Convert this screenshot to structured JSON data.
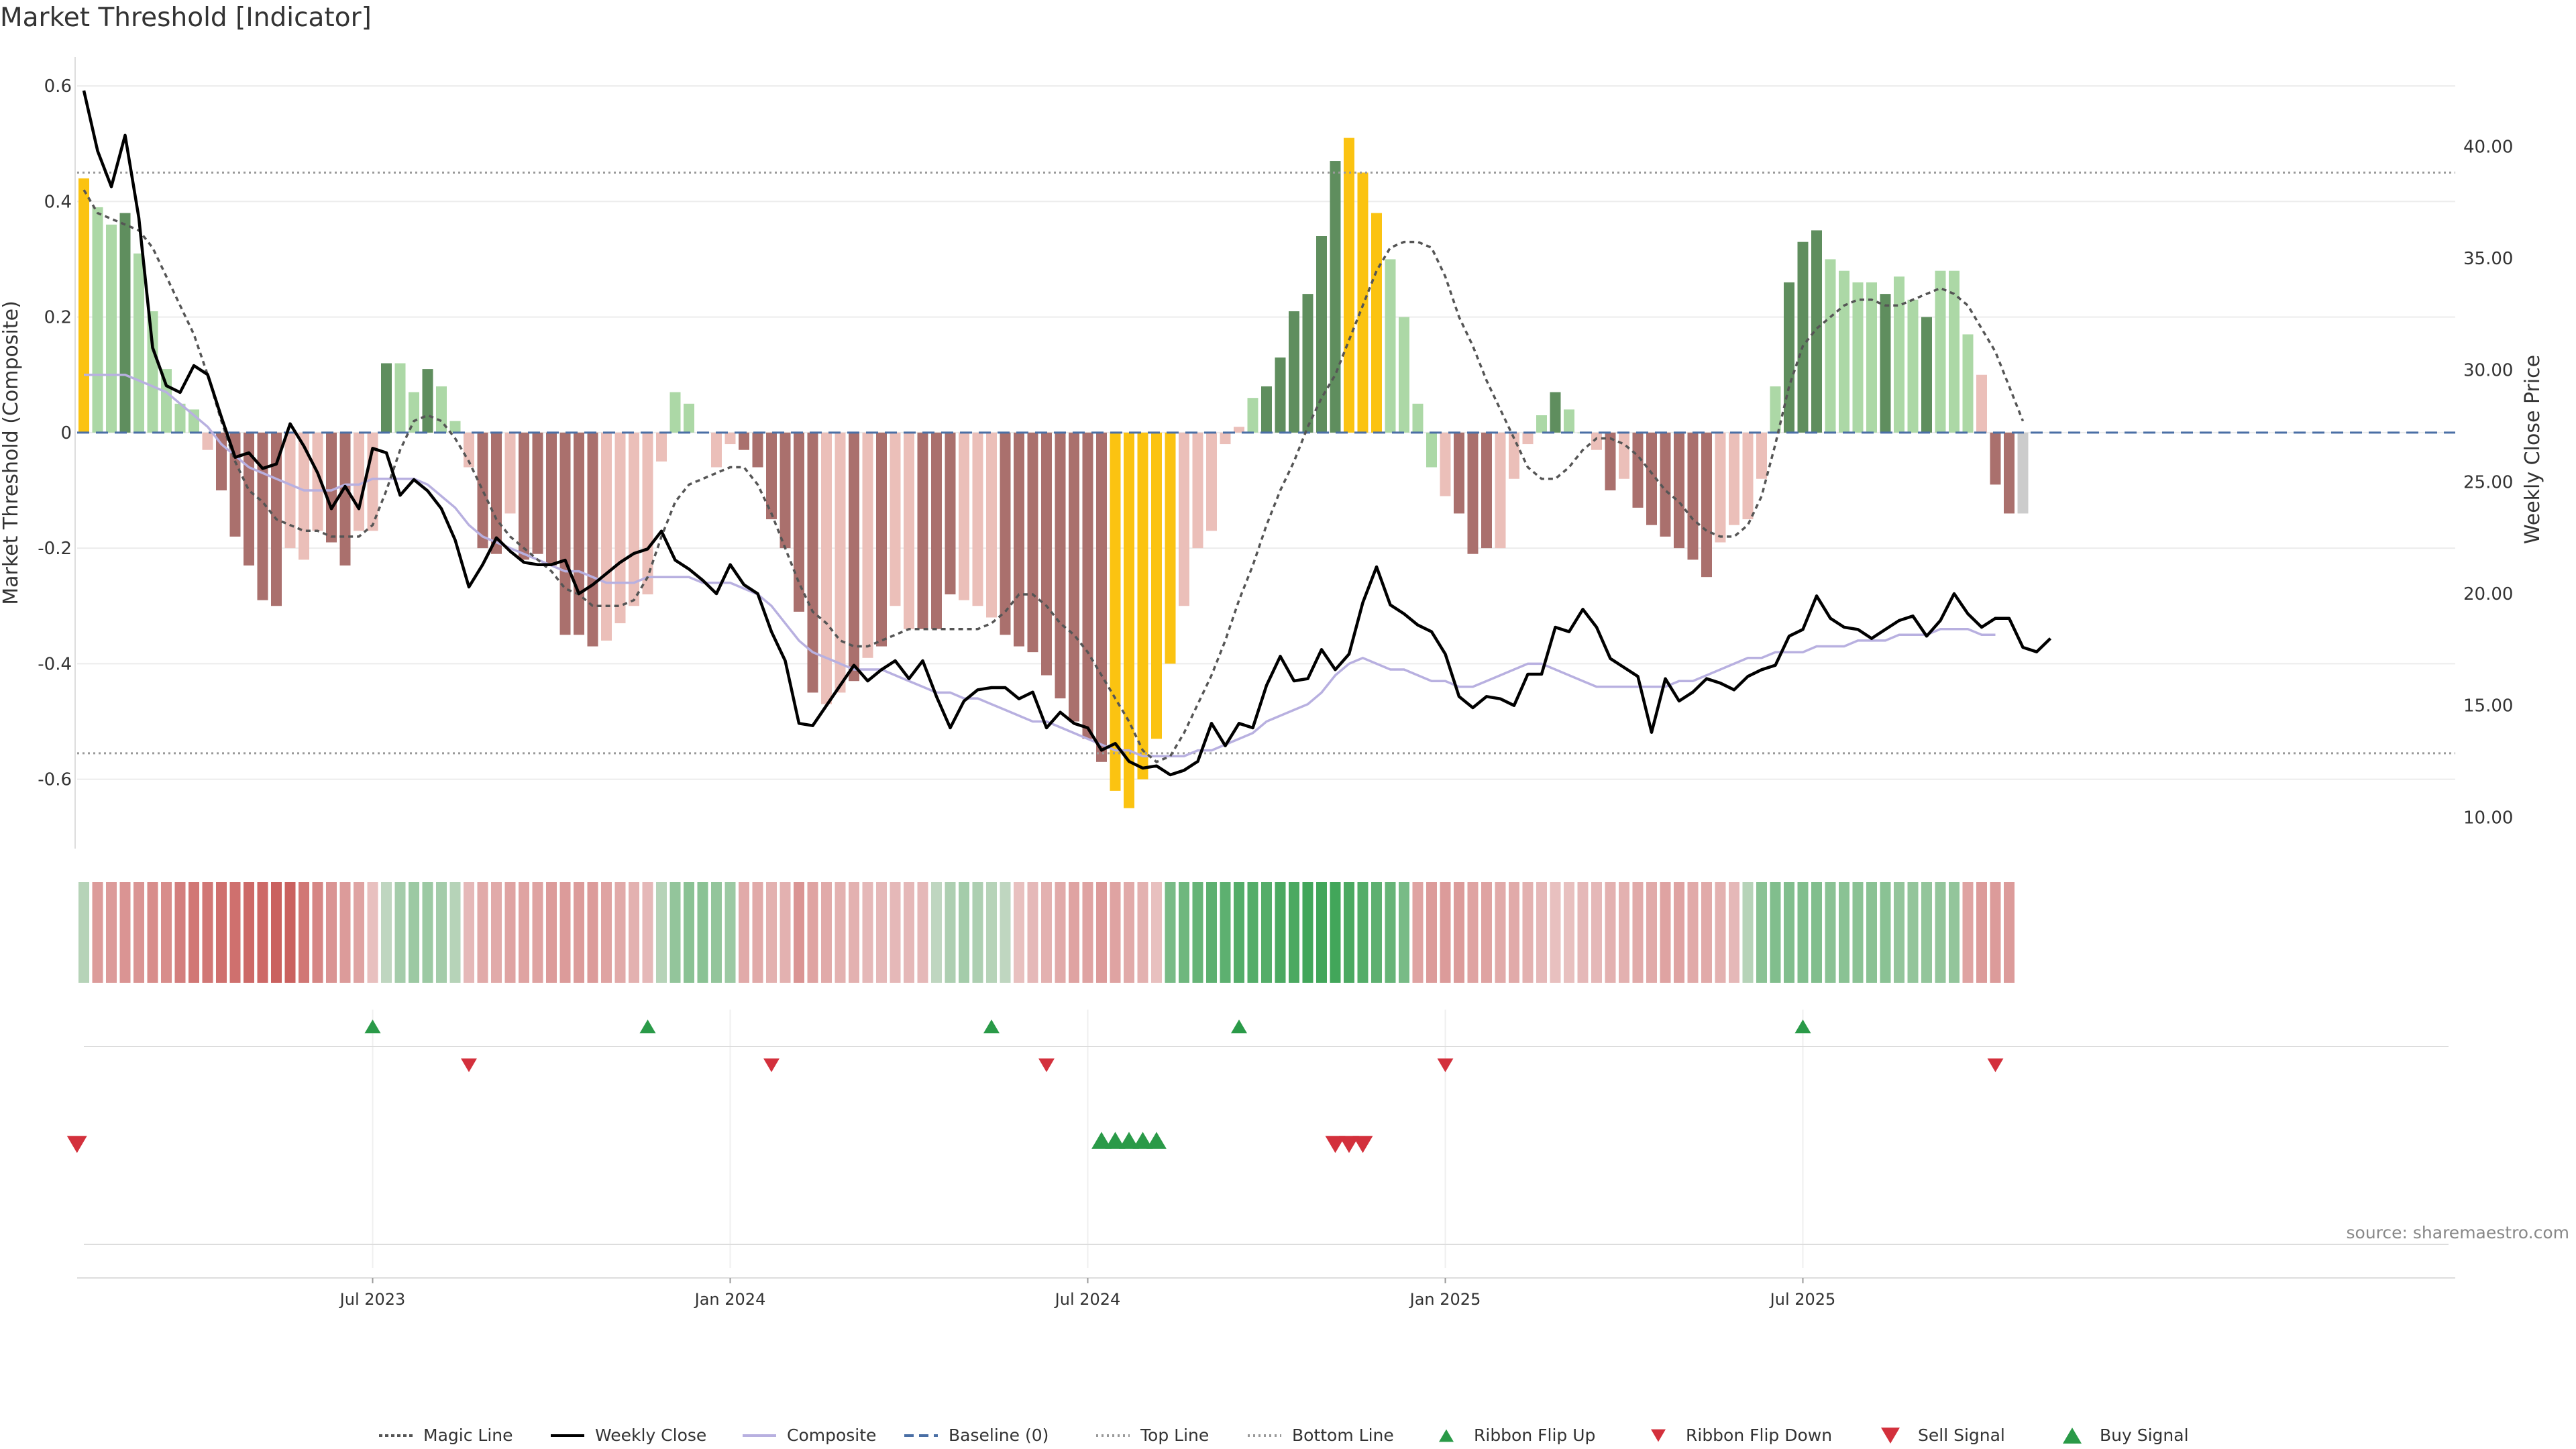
{
  "chart_data": {
    "type": "bar",
    "title": "Market Threshold [Indicator]",
    "ylabel": "Market Threshold (Composite)",
    "y2label": "Weekly Close Price",
    "source": "source: sharemaestro.com",
    "ylim": [
      -0.72,
      0.65
    ],
    "y2lim": [
      8.6,
      44.0
    ],
    "yticks": [
      {
        "v": 0.6,
        "label": "0.6"
      },
      {
        "v": 0.4,
        "label": "0.4"
      },
      {
        "v": 0.2,
        "label": "0.2"
      },
      {
        "v": 0.0,
        "label": "0"
      },
      {
        "v": -0.2,
        "label": "-0.2"
      },
      {
        "v": -0.4,
        "label": "-0.4"
      },
      {
        "v": -0.6,
        "label": "-0.6"
      }
    ],
    "y2ticks": [
      {
        "v": 40,
        "label": "40.00"
      },
      {
        "v": 35,
        "label": "35.00"
      },
      {
        "v": 30,
        "label": "30.00"
      },
      {
        "v": 25,
        "label": "25.00"
      },
      {
        "v": 20,
        "label": "20.00"
      },
      {
        "v": 15,
        "label": "15.00"
      },
      {
        "v": 10,
        "label": "10.00"
      }
    ],
    "xticks": [
      {
        "week": 21,
        "label": "Jul 2023"
      },
      {
        "week": 47,
        "label": "Jan 2024"
      },
      {
        "week": 73,
        "label": "Jul 2024"
      },
      {
        "week": 99,
        "label": "Jan 2025"
      },
      {
        "week": 125,
        "label": "Jul 2025"
      }
    ],
    "top_line": 0.45,
    "bottom_line": -0.555,
    "baseline": 0,
    "composite": [
      0.44,
      0.39,
      0.36,
      0.38,
      0.31,
      0.21,
      0.11,
      0.05,
      0.04,
      -0.03,
      -0.1,
      -0.18,
      -0.23,
      -0.29,
      -0.3,
      -0.2,
      -0.22,
      -0.17,
      -0.19,
      -0.23,
      -0.17,
      -0.17,
      0.12,
      0.12,
      0.07,
      0.11,
      0.08,
      0.02,
      -0.06,
      -0.2,
      -0.21,
      -0.14,
      -0.22,
      -0.21,
      -0.23,
      -0.35,
      -0.35,
      -0.37,
      -0.36,
      -0.33,
      -0.3,
      -0.28,
      -0.05,
      0.07,
      0.05,
      0,
      -0.06,
      -0.02,
      -0.03,
      -0.06,
      -0.15,
      -0.2,
      -0.31,
      -0.45,
      -0.47,
      -0.45,
      -0.43,
      -0.39,
      -0.37,
      -0.3,
      -0.34,
      -0.34,
      -0.34,
      -0.28,
      -0.29,
      -0.3,
      -0.32,
      -0.35,
      -0.37,
      -0.38,
      -0.42,
      -0.46,
      -0.5,
      -0.53,
      -0.57,
      -0.62,
      -0.65,
      -0.6,
      -0.53,
      -0.4,
      -0.3,
      -0.2,
      -0.17,
      -0.02,
      0.01,
      0.06,
      0.08,
      0.13,
      0.21,
      0.24,
      0.34,
      0.47,
      0.51,
      0.45,
      0.38,
      0.3,
      0.2,
      0.05,
      -0.06,
      -0.11,
      -0.14,
      -0.21,
      -0.2,
      -0.2,
      -0.08,
      -0.02,
      0.03,
      0.07,
      0.04,
      0,
      -0.03,
      -0.1,
      -0.08,
      -0.13,
      -0.16,
      -0.18,
      -0.2,
      -0.22,
      -0.25,
      -0.19,
      -0.16,
      -0.15,
      -0.08,
      0.08,
      0.26,
      0.33,
      0.35,
      0.3,
      0.28,
      0.26,
      0.26,
      0.24,
      0.27,
      0.23,
      0.2,
      0.28,
      0.28,
      0.17,
      0.1,
      -0.09,
      -0.14,
      -0.14
    ],
    "colors": [
      "ext",
      "lp",
      "lp",
      "dp",
      "lp",
      "lp",
      "lp",
      "lp",
      "lp",
      "ln",
      "dn",
      "dn",
      "dn",
      "dn",
      "dn",
      "ln",
      "ln",
      "ln",
      "dn",
      "dn",
      "ln",
      "ln",
      "dp",
      "lp",
      "lp",
      "dp",
      "lp",
      "lp",
      "ln",
      "dn",
      "dn",
      "ln",
      "dn",
      "dn",
      "dn",
      "dn",
      "dn",
      "dn",
      "ln",
      "ln",
      "ln",
      "ln",
      "ln",
      "lp",
      "lp",
      "lp",
      "ln",
      "ln",
      "dn",
      "dn",
      "dn",
      "dn",
      "dn",
      "dn",
      "ln",
      "ln",
      "dn",
      "ln",
      "dn",
      "ln",
      "ln",
      "dn",
      "dn",
      "dn",
      "ln",
      "ln",
      "ln",
      "dn",
      "dn",
      "dn",
      "dn",
      "dn",
      "dn",
      "dn",
      "dn",
      "ext",
      "ext",
      "ext",
      "ext",
      "ext",
      "ln",
      "ln",
      "ln",
      "ln",
      "ln",
      "lp",
      "dp",
      "dp",
      "dp",
      "dp",
      "dp",
      "dp",
      "ext",
      "ext",
      "ext",
      "lp",
      "lp",
      "lp",
      "lp",
      "ln",
      "dn",
      "dn",
      "dn",
      "ln",
      "ln",
      "ln",
      "lp",
      "dp",
      "lp",
      "lp",
      "ln",
      "dn",
      "ln",
      "dn",
      "dn",
      "dn",
      "dn",
      "dn",
      "dn",
      "ln",
      "ln",
      "ln",
      "ln",
      "lp",
      "dp",
      "dp",
      "dp",
      "lp",
      "lp",
      "lp",
      "lp",
      "dp",
      "lp",
      "lp",
      "dp",
      "lp",
      "lp",
      "lp",
      "ln",
      "dn",
      "dn"
    ],
    "weekly_close": [
      42.5,
      39.8,
      38.2,
      40.5,
      36.8,
      31.0,
      29.3,
      29.0,
      30.2,
      29.8,
      27.9,
      26.1,
      26.3,
      25.6,
      25.8,
      27.6,
      26.6,
      25.4,
      23.8,
      24.8,
      23.8,
      26.5,
      26.3,
      24.4,
      25.1,
      24.6,
      23.8,
      22.4,
      20.3,
      21.3,
      22.5,
      21.9,
      21.4,
      21.3,
      21.3,
      21.5,
      20.0,
      20.4,
      20.9,
      21.4,
      21.8,
      22.0,
      22.8,
      21.5,
      21.1,
      20.6,
      20.0,
      21.3,
      20.4,
      20.0,
      18.3,
      17.0,
      14.2,
      14.1,
      15.0,
      15.9,
      16.8,
      16.1,
      16.6,
      17.0,
      16.2,
      17.0,
      15.4,
      14.0,
      15.2,
      15.7,
      15.8,
      15.8,
      15.3,
      15.6,
      14.0,
      14.7,
      14.2,
      14.0,
      13.0,
      13.3,
      12.5,
      12.2,
      12.3,
      11.9,
      12.1,
      12.5,
      14.2,
      13.2,
      14.2,
      14.0,
      15.9,
      17.2,
      16.1,
      16.2,
      17.5,
      16.6,
      17.3,
      19.6,
      21.2,
      19.5,
      19.1,
      18.6,
      18.3,
      17.3,
      15.4,
      14.9,
      15.4,
      15.3,
      15.0,
      16.4,
      16.4,
      18.5,
      18.3,
      19.3,
      18.5,
      17.1,
      16.7,
      16.3,
      13.8,
      16.2,
      15.2,
      15.6,
      16.2,
      16.0,
      15.7,
      16.3,
      16.6,
      16.8,
      18.1,
      18.4,
      19.9,
      18.9,
      18.5,
      18.4,
      18.0,
      18.4,
      18.8,
      19.0,
      18.1,
      18.8,
      20.0,
      19.1,
      18.5,
      18.9,
      18.9,
      17.6,
      17.4,
      18.0
    ],
    "magic_line": [
      0.42,
      0.38,
      0.37,
      0.36,
      0.35,
      0.32,
      0.27,
      0.22,
      0.17,
      0.1,
      0.02,
      -0.05,
      -0.1,
      -0.12,
      -0.15,
      -0.16,
      -0.17,
      -0.17,
      -0.18,
      -0.18,
      -0.18,
      -0.16,
      -0.1,
      -0.03,
      0.02,
      0.03,
      0.02,
      -0.01,
      -0.05,
      -0.1,
      -0.15,
      -0.18,
      -0.2,
      -0.22,
      -0.24,
      -0.27,
      -0.28,
      -0.3,
      -0.3,
      -0.3,
      -0.29,
      -0.25,
      -0.18,
      -0.12,
      -0.09,
      -0.08,
      -0.07,
      -0.06,
      -0.06,
      -0.09,
      -0.14,
      -0.2,
      -0.26,
      -0.31,
      -0.33,
      -0.36,
      -0.37,
      -0.37,
      -0.36,
      -0.35,
      -0.34,
      -0.34,
      -0.34,
      -0.34,
      -0.34,
      -0.34,
      -0.33,
      -0.31,
      -0.28,
      -0.28,
      -0.3,
      -0.33,
      -0.35,
      -0.38,
      -0.42,
      -0.46,
      -0.5,
      -0.55,
      -0.57,
      -0.56,
      -0.52,
      -0.47,
      -0.42,
      -0.36,
      -0.29,
      -0.23,
      -0.16,
      -0.1,
      -0.05,
      0.01,
      0.06,
      0.1,
      0.16,
      0.22,
      0.28,
      0.32,
      0.33,
      0.33,
      0.32,
      0.27,
      0.2,
      0.15,
      0.09,
      0.04,
      -0.01,
      -0.06,
      -0.08,
      -0.08,
      -0.06,
      -0.03,
      -0.01,
      -0.01,
      -0.02,
      -0.04,
      -0.07,
      -0.1,
      -0.12,
      -0.15,
      -0.17,
      -0.18,
      -0.18,
      -0.16,
      -0.11,
      -0.02,
      0.08,
      0.15,
      0.18,
      0.2,
      0.22,
      0.23,
      0.23,
      0.22,
      0.22,
      0.23,
      0.24,
      0.25,
      0.24,
      0.22,
      0.18,
      0.14,
      0.08,
      0.02
    ],
    "composite_smooth": [
      0.1,
      0.1,
      0.1,
      0.1,
      0.09,
      0.08,
      0.07,
      0.05,
      0.03,
      0.01,
      -0.02,
      -0.04,
      -0.06,
      -0.07,
      -0.08,
      -0.09,
      -0.1,
      -0.1,
      -0.1,
      -0.09,
      -0.09,
      -0.08,
      -0.08,
      -0.08,
      -0.08,
      -0.09,
      -0.11,
      -0.13,
      -0.16,
      -0.18,
      -0.19,
      -0.2,
      -0.21,
      -0.22,
      -0.23,
      -0.24,
      -0.24,
      -0.25,
      -0.26,
      -0.26,
      -0.26,
      -0.25,
      -0.25,
      -0.25,
      -0.25,
      -0.26,
      -0.26,
      -0.26,
      -0.27,
      -0.28,
      -0.3,
      -0.33,
      -0.36,
      -0.38,
      -0.39,
      -0.4,
      -0.41,
      -0.41,
      -0.41,
      -0.42,
      -0.43,
      -0.44,
      -0.45,
      -0.45,
      -0.46,
      -0.46,
      -0.47,
      -0.48,
      -0.49,
      -0.5,
      -0.5,
      -0.51,
      -0.52,
      -0.53,
      -0.54,
      -0.55,
      -0.55,
      -0.56,
      -0.56,
      -0.56,
      -0.56,
      -0.55,
      -0.55,
      -0.54,
      -0.53,
      -0.52,
      -0.5,
      -0.49,
      -0.48,
      -0.47,
      -0.45,
      -0.42,
      -0.4,
      -0.39,
      -0.4,
      -0.41,
      -0.41,
      -0.42,
      -0.43,
      -0.43,
      -0.44,
      -0.44,
      -0.43,
      -0.42,
      -0.41,
      -0.4,
      -0.4,
      -0.41,
      -0.42,
      -0.43,
      -0.44,
      -0.44,
      -0.44,
      -0.44,
      -0.44,
      -0.44,
      -0.43,
      -0.43,
      -0.42,
      -0.41,
      -0.4,
      -0.39,
      -0.39,
      -0.38,
      -0.38,
      -0.38,
      -0.37,
      -0.37,
      -0.37,
      -0.36,
      -0.36,
      -0.36,
      -0.35,
      -0.35,
      -0.35,
      -0.34,
      -0.34,
      -0.34,
      -0.35,
      -0.35
    ],
    "ribbon": [
      0.35,
      -0.55,
      -0.55,
      -0.6,
      -0.6,
      -0.65,
      -0.65,
      -0.75,
      -0.8,
      -0.8,
      -0.85,
      -0.85,
      -0.9,
      -0.9,
      -0.95,
      -0.95,
      -0.8,
      -0.7,
      -0.6,
      -0.55,
      -0.5,
      -0.3,
      0.3,
      0.45,
      0.5,
      0.5,
      0.45,
      0.35,
      -0.35,
      -0.45,
      -0.45,
      -0.5,
      -0.5,
      -0.5,
      -0.55,
      -0.55,
      -0.55,
      -0.55,
      -0.5,
      -0.45,
      -0.4,
      -0.35,
      0.35,
      0.55,
      0.6,
      0.6,
      0.55,
      0.5,
      -0.45,
      -0.45,
      -0.4,
      -0.4,
      -0.6,
      -0.5,
      -0.45,
      -0.4,
      -0.4,
      -0.35,
      -0.35,
      -0.35,
      -0.35,
      -0.35,
      0.3,
      0.4,
      0.45,
      0.4,
      0.35,
      0.3,
      -0.3,
      -0.35,
      -0.4,
      -0.45,
      -0.5,
      -0.5,
      -0.55,
      -0.5,
      -0.45,
      -0.4,
      -0.3,
      0.7,
      0.75,
      0.8,
      0.85,
      0.85,
      0.9,
      0.9,
      0.9,
      0.95,
      0.95,
      1.0,
      1.0,
      1.0,
      0.95,
      0.9,
      0.85,
      0.8,
      0.7,
      -0.5,
      -0.55,
      -0.55,
      -0.55,
      -0.5,
      -0.5,
      -0.45,
      -0.45,
      -0.4,
      -0.35,
      -0.3,
      -0.3,
      -0.35,
      -0.35,
      -0.4,
      -0.4,
      -0.45,
      -0.45,
      -0.5,
      -0.5,
      -0.45,
      -0.45,
      -0.4,
      -0.35,
      0.35,
      0.6,
      0.65,
      0.65,
      0.65,
      0.65,
      0.6,
      0.6,
      0.6,
      0.6,
      0.6,
      0.55,
      0.55,
      0.55,
      0.55,
      0.55,
      -0.5,
      -0.55,
      -0.55,
      -0.55
    ],
    "ribbon_flip_up": [
      21,
      41,
      66,
      84,
      125
    ],
    "ribbon_flip_down": [
      28,
      50,
      70,
      99,
      139
    ],
    "buy_signal": [
      74,
      75,
      76,
      77,
      78
    ],
    "sell_signal": [
      -0.5,
      91,
      92,
      93
    ],
    "legend": [
      "Magic Line",
      "Weekly Close",
      "Composite",
      "Baseline (0)",
      "Top Line",
      "Bottom Line",
      "Ribbon Flip Up",
      "Ribbon Flip Down",
      "Sell Signal",
      "Buy Signal"
    ]
  },
  "colors": {
    "extreme": "#fbc311",
    "dark_pos": "#5f8e5e",
    "light_pos": "#acd8a6",
    "dark_neg": "#aa706d",
    "light_neg": "#ebbfb9",
    "close_line": "#000000",
    "magic_line": "#555555",
    "composite_line": "#b8b0e0",
    "baseline": "#4a6fa5",
    "signal_up": "#2a9a48",
    "signal_down": "#d3303c"
  }
}
